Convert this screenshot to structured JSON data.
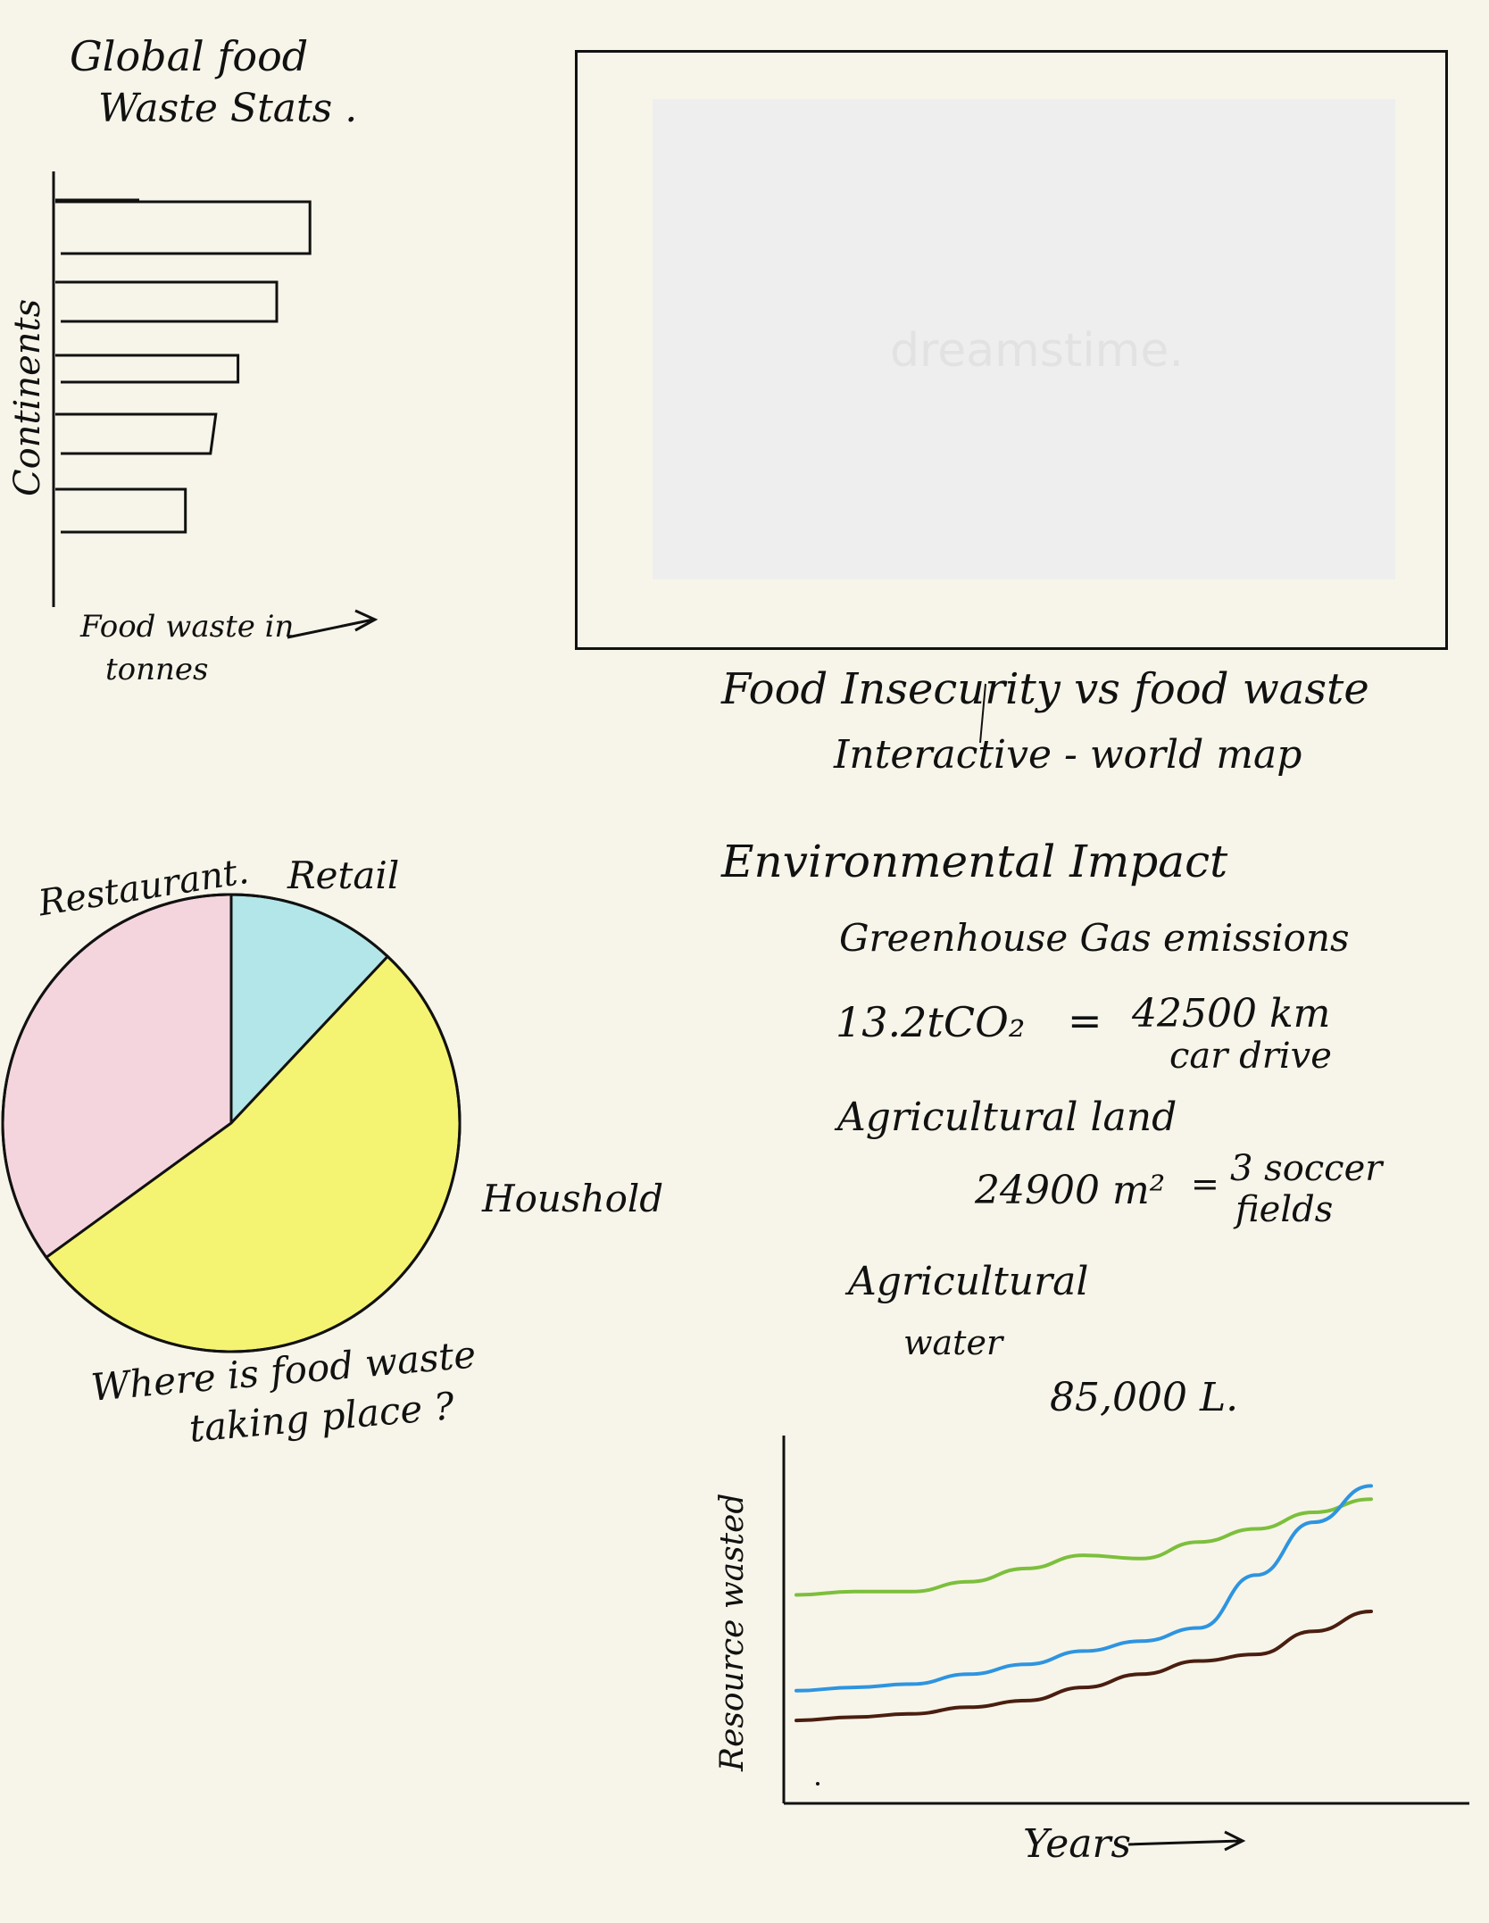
{
  "bar_sketch": {
    "title_line1": "Global food",
    "title_line2": "Waste Stats .",
    "y_label": "Continents",
    "x_label_line1": "Food waste in",
    "x_label_line2": "tonnes"
  },
  "map_section": {
    "caption_line1": "Food Insecurity vs food waste",
    "caption_line2": "Interactive - world map",
    "watermark": "dreamstime."
  },
  "pie_sketch": {
    "labels": [
      "Restaurant.",
      "Retail",
      "Houshold"
    ],
    "caption_line1": "Where is food waste",
    "caption_line2": "taking place ?"
  },
  "impact": {
    "heading": "Environmental Impact",
    "ghg_label": "Greenhouse Gas emissions",
    "ghg_value": "13.2tCO₂",
    "ghg_eq_sign": "=",
    "ghg_equiv_line1": "42500 km",
    "ghg_equiv_line2": "car drive",
    "land_label": "Agricultural land",
    "land_value": "24900 m²",
    "land_eq_sign": "=",
    "land_equiv_line1": "3 soccer",
    "land_equiv_line2": "fields",
    "water_label_line1": "Agricultural",
    "water_label_line2": "water",
    "water_value": "85,000 L."
  },
  "line_sketch": {
    "y_label": "Resource wasted",
    "x_label": "Years"
  },
  "chart_data": [
    {
      "type": "bar",
      "orientation": "horizontal",
      "title": "Global food Waste Stats .",
      "xlabel": "Food waste in tonnes",
      "ylabel": "Continents",
      "values": [
        92,
        80,
        66,
        58,
        47
      ],
      "note": "sketch, unlabelled bars"
    },
    {
      "type": "pie",
      "title": "Where is food waste taking place ?",
      "labels": [
        "Restaurant.",
        "Retail",
        "Houshold"
      ],
      "values": [
        35,
        12,
        53
      ],
      "colors": [
        "#f4d5de",
        "#b3e6e8",
        "#f5f472"
      ]
    },
    {
      "type": "line",
      "xlabel": "Years",
      "ylabel": "Resource wasted",
      "x": [
        0,
        1,
        2,
        3,
        4,
        5,
        6,
        7,
        8,
        9,
        10
      ],
      "series": [
        {
          "color": "#7cbf3c",
          "values": [
            55,
            56,
            56,
            59,
            63,
            67,
            66,
            71,
            75,
            80,
            84
          ]
        },
        {
          "color": "#2e94e0",
          "values": [
            26,
            27,
            28,
            31,
            34,
            38,
            41,
            45,
            61,
            77,
            88
          ]
        },
        {
          "color": "#4a1e10",
          "values": [
            17,
            18,
            19,
            21,
            23,
            27,
            31,
            35,
            37,
            44,
            50
          ]
        }
      ],
      "ylim": [
        0,
        100
      ]
    }
  ]
}
